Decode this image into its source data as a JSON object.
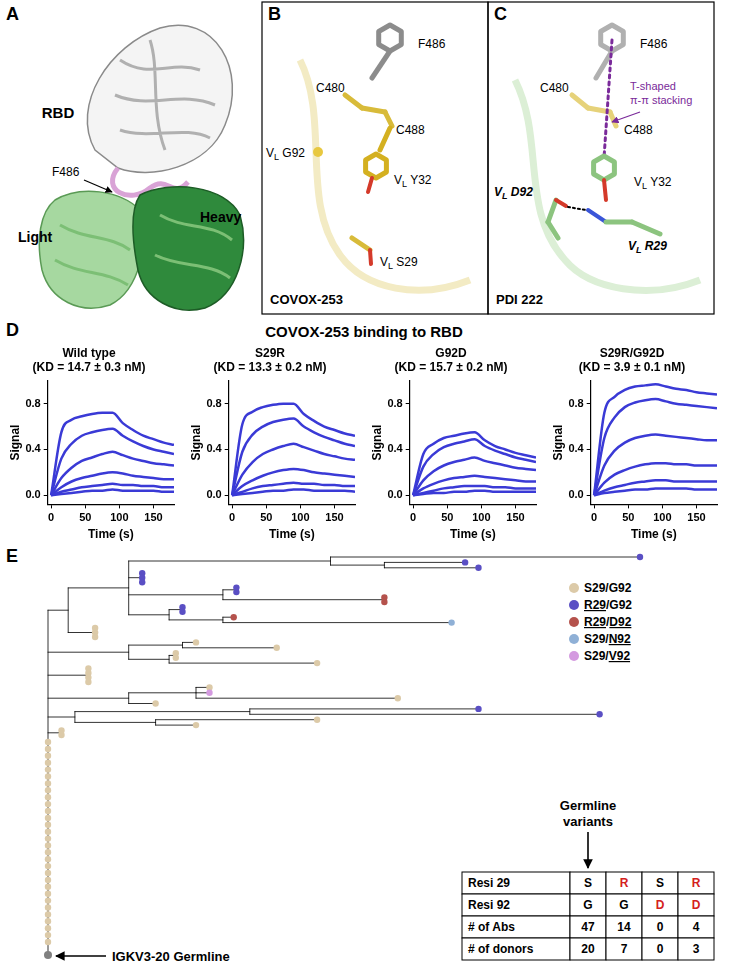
{
  "panel_labels": [
    "A",
    "B",
    "C",
    "D",
    "E"
  ],
  "panel_a": {
    "labels": [
      "RBD",
      "Light",
      "Heavy",
      "F486"
    ]
  },
  "panel_b": {
    "name": "COVOX-253",
    "labels": [
      "F486",
      "C480",
      "C488",
      "VL G92",
      "VL Y32",
      "VL S29"
    ]
  },
  "panel_c": {
    "name": "PDI 222",
    "labels": [
      "F486",
      "C480",
      "C488",
      "VL Y32",
      "VL D92",
      "VL R29"
    ],
    "interaction": [
      "T-shaped",
      "π-π stacking"
    ]
  },
  "panel_d": {
    "title": "COVOX-253 binding to RBD"
  },
  "chart_data": [
    {
      "type": "line",
      "title": "Wild type",
      "subtitle": "(KD = 14.7 ± 0.3 nM)",
      "x_label": "Time (s)",
      "y_label": "Signal",
      "x": [
        0,
        15,
        30,
        45,
        60,
        75,
        90,
        105,
        120,
        135,
        150,
        165,
        180
      ],
      "series": [
        {
          "color": "#3a3ad6",
          "values": [
            0,
            0.55,
            0.66,
            0.69,
            0.71,
            0.72,
            0.72,
            0.63,
            0.57,
            0.52,
            0.49,
            0.46,
            0.44
          ]
        },
        {
          "color": "#3a3ad6",
          "values": [
            0,
            0.32,
            0.45,
            0.52,
            0.55,
            0.57,
            0.58,
            0.52,
            0.47,
            0.43,
            0.4,
            0.38,
            0.36
          ]
        },
        {
          "color": "#3a3ad6",
          "values": [
            0,
            0.15,
            0.24,
            0.3,
            0.33,
            0.36,
            0.38,
            0.35,
            0.32,
            0.3,
            0.28,
            0.27,
            0.26
          ]
        },
        {
          "color": "#3a3ad6",
          "values": [
            0,
            0.07,
            0.12,
            0.15,
            0.17,
            0.19,
            0.2,
            0.19,
            0.17,
            0.16,
            0.15,
            0.14,
            0.14
          ]
        },
        {
          "color": "#3a3ad6",
          "values": [
            0,
            0.03,
            0.05,
            0.07,
            0.08,
            0.09,
            0.1,
            0.09,
            0.09,
            0.08,
            0.08,
            0.07,
            0.07
          ]
        },
        {
          "color": "#3a3ad6",
          "values": [
            0,
            0.01,
            0.02,
            0.03,
            0.04,
            0.04,
            0.05,
            0.04,
            0.04,
            0.04,
            0.04,
            0.03,
            0.03
          ]
        }
      ],
      "xlim": [
        -5,
        180
      ],
      "xticks": [
        0,
        50,
        100,
        150
      ],
      "ylim": [
        -0.08,
        1.0
      ],
      "yticks": [
        {
          "value": 0,
          "label": "0.0"
        },
        {
          "value": 0.4,
          "label": "0.4"
        },
        {
          "value": 0.8,
          "label": "0.8"
        }
      ],
      "grid": false
    },
    {
      "type": "line",
      "title": "S29R",
      "subtitle": "(KD = 13.3 ± 0.2 nM)",
      "x_label": "Time (s)",
      "y_label": "Signal",
      "x": [
        0,
        15,
        30,
        45,
        60,
        75,
        90,
        105,
        120,
        135,
        150,
        165,
        180
      ],
      "series": [
        {
          "color": "#3a3ad6",
          "values": [
            0,
            0.62,
            0.73,
            0.77,
            0.79,
            0.8,
            0.8,
            0.71,
            0.65,
            0.6,
            0.57,
            0.54,
            0.52
          ]
        },
        {
          "color": "#3a3ad6",
          "values": [
            0,
            0.38,
            0.53,
            0.6,
            0.64,
            0.66,
            0.67,
            0.6,
            0.55,
            0.51,
            0.48,
            0.45,
            0.43
          ]
        },
        {
          "color": "#3a3ad6",
          "values": [
            0,
            0.18,
            0.29,
            0.36,
            0.4,
            0.43,
            0.45,
            0.42,
            0.39,
            0.36,
            0.34,
            0.32,
            0.31
          ]
        },
        {
          "color": "#3a3ad6",
          "values": [
            0,
            0.08,
            0.13,
            0.17,
            0.2,
            0.22,
            0.23,
            0.22,
            0.2,
            0.19,
            0.18,
            0.17,
            0.16
          ]
        },
        {
          "color": "#3a3ad6",
          "values": [
            0,
            0.03,
            0.06,
            0.08,
            0.09,
            0.1,
            0.11,
            0.1,
            0.1,
            0.09,
            0.09,
            0.08,
            0.08
          ]
        },
        {
          "color": "#3a3ad6",
          "values": [
            0,
            0.01,
            0.02,
            0.03,
            0.04,
            0.04,
            0.05,
            0.05,
            0.04,
            0.04,
            0.04,
            0.04,
            0.03
          ]
        }
      ],
      "xlim": [
        -5,
        180
      ],
      "xticks": [
        0,
        50,
        100,
        150
      ],
      "ylim": [
        -0.08,
        1.0
      ],
      "yticks": [
        {
          "value": 0,
          "label": "0.0"
        },
        {
          "value": 0.4,
          "label": "0.4"
        },
        {
          "value": 0.8,
          "label": "0.8"
        }
      ],
      "grid": false
    },
    {
      "type": "line",
      "title": "G92D",
      "subtitle": "(KD = 15.7 ± 0.2 nM)",
      "x_label": "Time (s)",
      "y_label": "Signal",
      "x": [
        0,
        15,
        30,
        45,
        60,
        75,
        90,
        105,
        120,
        135,
        150,
        165,
        180
      ],
      "series": [
        {
          "color": "#3a3ad6",
          "values": [
            0,
            0.36,
            0.45,
            0.5,
            0.52,
            0.54,
            0.55,
            0.48,
            0.43,
            0.4,
            0.37,
            0.35,
            0.33
          ]
        },
        {
          "color": "#3a3ad6",
          "values": [
            0,
            0.25,
            0.36,
            0.42,
            0.45,
            0.47,
            0.49,
            0.43,
            0.39,
            0.36,
            0.33,
            0.31,
            0.29
          ]
        },
        {
          "color": "#3a3ad6",
          "values": [
            0,
            0.13,
            0.21,
            0.26,
            0.29,
            0.31,
            0.33,
            0.3,
            0.28,
            0.26,
            0.24,
            0.23,
            0.22
          ]
        },
        {
          "color": "#3a3ad6",
          "values": [
            0,
            0.06,
            0.1,
            0.13,
            0.15,
            0.16,
            0.17,
            0.16,
            0.15,
            0.14,
            0.13,
            0.12,
            0.12
          ]
        },
        {
          "color": "#3a3ad6",
          "values": [
            0,
            0.02,
            0.04,
            0.06,
            0.07,
            0.08,
            0.08,
            0.08,
            0.07,
            0.07,
            0.06,
            0.06,
            0.06
          ]
        },
        {
          "color": "#3a3ad6",
          "values": [
            0,
            0.01,
            0.02,
            0.02,
            0.03,
            0.03,
            0.04,
            0.04,
            0.03,
            0.03,
            0.03,
            0.03,
            0.03
          ]
        }
      ],
      "xlim": [
        -5,
        180
      ],
      "xticks": [
        0,
        50,
        100,
        150
      ],
      "ylim": [
        -0.08,
        1.0
      ],
      "yticks": [
        {
          "value": 0,
          "label": "0.0"
        },
        {
          "value": 0.4,
          "label": "0.4"
        },
        {
          "value": 0.8,
          "label": "0.8"
        }
      ],
      "grid": false
    },
    {
      "type": "line",
      "title": "S29R/G92D",
      "subtitle": "(KD = 3.9 ± 0.1 nM)",
      "x_label": "Time (s)",
      "y_label": "Signal",
      "x": [
        0,
        15,
        30,
        45,
        60,
        75,
        90,
        105,
        120,
        135,
        150,
        165,
        180
      ],
      "series": [
        {
          "color": "#3a3ad6",
          "values": [
            0,
            0.72,
            0.86,
            0.92,
            0.95,
            0.96,
            0.97,
            0.95,
            0.93,
            0.92,
            0.9,
            0.89,
            0.88
          ]
        },
        {
          "color": "#3a3ad6",
          "values": [
            0,
            0.5,
            0.68,
            0.77,
            0.81,
            0.83,
            0.84,
            0.82,
            0.8,
            0.79,
            0.78,
            0.77,
            0.76
          ]
        },
        {
          "color": "#3a3ad6",
          "values": [
            0,
            0.26,
            0.39,
            0.46,
            0.5,
            0.52,
            0.53,
            0.52,
            0.51,
            0.5,
            0.49,
            0.48,
            0.48
          ]
        },
        {
          "color": "#3a3ad6",
          "values": [
            0,
            0.11,
            0.18,
            0.22,
            0.25,
            0.27,
            0.28,
            0.28,
            0.27,
            0.27,
            0.26,
            0.26,
            0.26
          ]
        },
        {
          "color": "#3a3ad6",
          "values": [
            0,
            0.04,
            0.07,
            0.09,
            0.11,
            0.12,
            0.13,
            0.13,
            0.12,
            0.12,
            0.12,
            0.12,
            0.12
          ]
        },
        {
          "color": "#3a3ad6",
          "values": [
            0,
            0.02,
            0.03,
            0.04,
            0.05,
            0.05,
            0.06,
            0.06,
            0.06,
            0.06,
            0.05,
            0.05,
            0.05
          ]
        }
      ],
      "xlim": [
        -5,
        180
      ],
      "xticks": [
        0,
        50,
        100,
        150
      ],
      "ylim": [
        -0.08,
        1.0
      ],
      "yticks": [
        {
          "value": 0,
          "label": "0.0"
        },
        {
          "value": 0.4,
          "label": "0.4"
        },
        {
          "value": 0.8,
          "label": "0.8"
        }
      ],
      "grid": false
    }
  ],
  "panel_e": {
    "legend": [
      {
        "label": "S29/G92",
        "color": "#dccaa8"
      },
      {
        "label": "R29/G92",
        "color": "#5a4fc4"
      },
      {
        "label": "R29/D92",
        "color": "#b5524c"
      },
      {
        "label": "S29/N92",
        "color": "#8fb0d6"
      },
      {
        "label": "S29/V92",
        "color": "#d49ae0"
      }
    ],
    "tree": {
      "children": [
        {
          "length": 15,
          "children": [
            {
              "length": 45,
              "children": [
                {
                  "length": 150,
                  "children": [
                    {
                      "length": 230,
                      "group": "R29/G92"
                    },
                    {
                      "length": 40,
                      "children": [
                        {
                          "length": 60,
                          "group": "R29/G92"
                        },
                        {
                          "length": 70,
                          "group": "R29/G92"
                        }
                      ]
                    }
                  ]
                },
                {
                  "length": 10,
                  "group": "R29/G92",
                  "count": 3
                },
                {
                  "length": 70,
                  "children": [
                    {
                      "length": 10,
                      "group": "R29/G92",
                      "count": 2
                    },
                    {
                      "length": 120,
                      "group": "R29/D92",
                      "count": 2
                    }
                  ]
                },
                {
                  "length": 30,
                  "children": [
                    {
                      "length": 10,
                      "group": "R29/G92",
                      "count": 2
                    },
                    {
                      "length": 40,
                      "children": [
                        {
                          "length": 8,
                          "group": "R29/D92"
                        },
                        {
                          "length": 170,
                          "group": "S29/N92"
                        }
                      ]
                    }
                  ]
                }
              ]
            },
            {
              "length": 20,
              "group": "S29/G92",
              "count": 3
            }
          ]
        },
        {
          "length": 60,
          "children": [
            {
              "length": 40,
              "children": [
                {
                  "length": 10,
                  "group": "S29/G92"
                },
                {
                  "length": 70,
                  "group": "S29/G92"
                }
              ]
            },
            {
              "length": 30,
              "children": [
                {
                  "length": 5,
                  "group": "S29/G92",
                  "count": 2
                },
                {
                  "length": 110,
                  "group": "S29/G92"
                }
              ]
            }
          ]
        },
        {
          "length": 30,
          "group": "S29/G92",
          "count": 4
        },
        {
          "length": 60,
          "children": [
            {
              "length": 50,
              "children": [
                {
                  "length": 10,
                  "group": "S29/G92"
                },
                {
                  "length": 10,
                  "group": "S29/V92"
                },
                {
                  "length": 150,
                  "group": "S29/G92"
                }
              ]
            },
            {
              "length": 20,
              "group": "S29/G92"
            }
          ]
        },
        {
          "length": 20,
          "children": [
            {
              "length": 130,
              "children": [
                {
                  "length": 170,
                  "group": "R29/G92"
                },
                {
                  "length": 260,
                  "group": "R29/G92"
                }
              ]
            },
            {
              "length": 60,
              "children": [
                {
                  "length": 120,
                  "group": "S29/G92"
                },
                {
                  "length": 30,
                  "group": "S29/G92"
                }
              ]
            }
          ]
        },
        {
          "length": 10,
          "group": "S29/G92",
          "count": 2
        }
      ]
    },
    "germline": {
      "label": "IGKV3-20 Germline",
      "group": "S29/G92",
      "count": 30,
      "color": "#808080"
    },
    "table": {
      "title": "Germline variants",
      "rows": [
        [
          "Resi 29",
          "S",
          "R",
          "S",
          "R"
        ],
        [
          "Resi 92",
          "G",
          "G",
          "D",
          "D"
        ],
        [
          "# of Abs",
          47,
          14,
          0,
          4
        ],
        [
          "# of donors",
          20,
          7,
          0,
          3
        ]
      ]
    }
  }
}
